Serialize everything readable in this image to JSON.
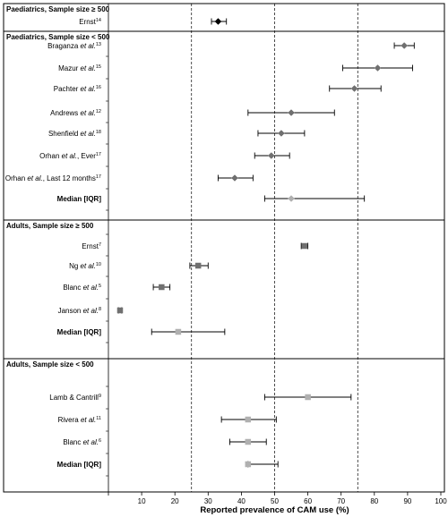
{
  "chart_data": {
    "type": "forest",
    "xlabel": "Reported prevalence of CAM use (%)",
    "xlim": [
      0,
      100
    ],
    "xticks": [
      10,
      20,
      30,
      40,
      50,
      60,
      70,
      80,
      90,
      100
    ],
    "reference_lines": [
      25,
      50,
      75
    ],
    "sections": [
      {
        "title": "Paediatrics, Sample size ≥ 500",
        "rows": [
          {
            "label": "Ernst",
            "ref": "14",
            "value": 33,
            "lo": 31,
            "hi": 35.5,
            "marker": "diamond",
            "color": "#000000"
          }
        ]
      },
      {
        "title": "Paediatrics, Sample size < 500",
        "rows": [
          {
            "label": "Braganza et al.",
            "ref": "13",
            "value": 89,
            "lo": 86,
            "hi": 92,
            "marker": "diamond",
            "color": "#707070"
          },
          {
            "label": "Mazur et al.",
            "ref": "15",
            "value": 81,
            "lo": 70.5,
            "hi": 91.5,
            "marker": "diamond",
            "color": "#707070"
          },
          {
            "label": "Pachter et al.",
            "ref": "16",
            "value": 74,
            "lo": 66.5,
            "hi": 82,
            "marker": "diamond",
            "color": "#707070"
          },
          {
            "label": "Andrews et al.",
            "ref": "12",
            "value": 55,
            "lo": 42,
            "hi": 68,
            "marker": "diamond",
            "color": "#707070"
          },
          {
            "label": "Shenfield et al.",
            "ref": "18",
            "value": 52,
            "lo": 45,
            "hi": 59,
            "marker": "diamond",
            "color": "#707070"
          },
          {
            "label": "Orhan et al., Ever",
            "ref": "17",
            "value": 49,
            "lo": 44,
            "hi": 54.5,
            "marker": "diamond",
            "color": "#707070"
          },
          {
            "label": "Orhan et al., Last 12 months",
            "ref": "17",
            "value": 38,
            "lo": 33,
            "hi": 43.5,
            "marker": "diamond",
            "color": "#707070"
          },
          {
            "label": "Median [IQR]",
            "ref": "",
            "value": 55,
            "lo": 47,
            "hi": 77,
            "marker": "diamond",
            "color": "#b0b0b0",
            "bold": true
          }
        ]
      },
      {
        "title": "Adults, Sample size ≥ 500",
        "rows": [
          {
            "label": "Ernst",
            "ref": "7",
            "value": 59,
            "lo": 58,
            "hi": 60,
            "marker": "square",
            "color": "#707070"
          },
          {
            "label": "Ng et al.",
            "ref": "10",
            "value": 27,
            "lo": 24.5,
            "hi": 30,
            "marker": "square",
            "color": "#707070"
          },
          {
            "label": "Blanc et al.",
            "ref": "5",
            "value": 16,
            "lo": 13.5,
            "hi": 18.5,
            "marker": "square",
            "color": "#707070"
          },
          {
            "label": "Janson et al.",
            "ref": "8",
            "value": 3.5,
            "lo": 3,
            "hi": 4,
            "marker": "square",
            "color": "#707070"
          },
          {
            "label": "Median [IQR]",
            "ref": "",
            "value": 21,
            "lo": 13,
            "hi": 35,
            "marker": "square",
            "color": "#b0b0b0",
            "bold": true
          }
        ]
      },
      {
        "title": "Adults, Sample size < 500",
        "rows": [
          {
            "label": "Lamb & Cantrill",
            "ref": "9",
            "value": 60,
            "lo": 47,
            "hi": 73,
            "marker": "square",
            "color": "#b0b0b0"
          },
          {
            "label": "Rivera et al.",
            "ref": "11",
            "value": 42,
            "lo": 34,
            "hi": 50.5,
            "marker": "square",
            "color": "#b0b0b0"
          },
          {
            "label": "Blanc et al.",
            "ref": "6",
            "value": 42,
            "lo": 36.5,
            "hi": 47.5,
            "marker": "square",
            "color": "#b0b0b0"
          },
          {
            "label": "Median [IQR]",
            "ref": "",
            "value": 42,
            "lo": 42,
            "hi": 51,
            "marker": "square",
            "color": "#b0b0b0",
            "bold": true
          }
        ]
      }
    ]
  }
}
